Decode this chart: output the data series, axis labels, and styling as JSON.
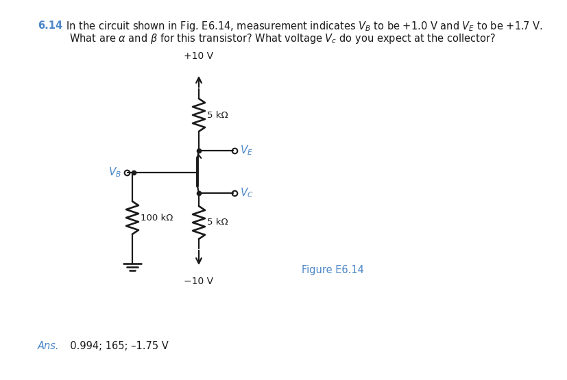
{
  "background": "#ffffff",
  "black": "#1a1a1a",
  "blue": "#4a86c8",
  "supply_top": "+10 V",
  "supply_bot": "−10 V",
  "r1_label": "5 kΩ",
  "r2_label": "100 kΩ",
  "r3_label": "5 kΩ",
  "figure_label": "Figure E6.14",
  "header_num": "6.14",
  "header_line1_rest": "  In the circuit shown in Fig. E6.14, measurement indicates $V_B$ to be +1.0 V and $V_E$ to be +1.7 V.",
  "header_line2": "What are $\\alpha$ and $\\beta$ for this transistor? What voltage $V_c$ do you expect at the collector?",
  "ans_label": "Ans.",
  "ans_rest": "  0.994; 165; –1.75 V",
  "lw": 1.6
}
